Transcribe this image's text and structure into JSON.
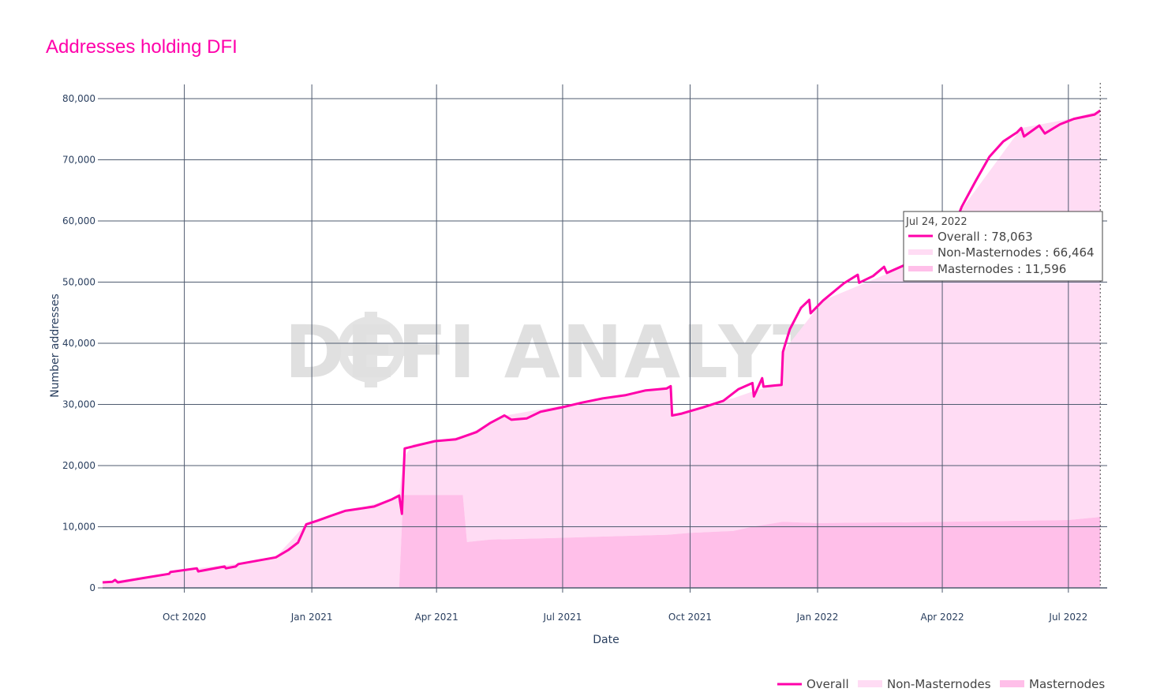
{
  "colors": {
    "overall_line": "#ff00aa",
    "non_masternodes_fill": "#ffdcf4",
    "masternodes_fill": "#ffbfe9",
    "grid": "#4f5b6f",
    "axis_text": "#2a3f5f"
  },
  "chart_data": {
    "type": "area",
    "title": "Addresses holding DFI",
    "xlabel": "Date",
    "ylabel": "Number addresses",
    "xlim": [
      "2020-08-03",
      "2022-07-29"
    ],
    "ylim": [
      0,
      80000
    ],
    "y_ticks": [
      0,
      10000,
      20000,
      30000,
      40000,
      50000,
      60000,
      70000,
      80000
    ],
    "y_tick_labels": [
      "0",
      "10,000",
      "20,000",
      "30,000",
      "40,000",
      "50,000",
      "60,000",
      "70,000",
      "80,000"
    ],
    "x_ticks": [
      "2020-10-01",
      "2021-01-01",
      "2021-04-01",
      "2021-07-01",
      "2021-10-01",
      "2022-01-01",
      "2022-04-01",
      "2022-07-01"
    ],
    "x_tick_labels": [
      "Oct 2020",
      "Jan 2021",
      "Apr 2021",
      "Jul 2021",
      "Oct 2021",
      "Jan 2022",
      "Apr 2022",
      "Jul 2022"
    ],
    "grid": true,
    "legend_position": "bottom-right",
    "hover_marker_date": "2022-07-24",
    "series": [
      {
        "name": "Overall",
        "style": "line",
        "points": [
          [
            "2020-08-03",
            900
          ],
          [
            "2020-08-10",
            1000
          ],
          [
            "2020-08-12",
            1300
          ],
          [
            "2020-08-14",
            900
          ],
          [
            "2020-09-01",
            1600
          ],
          [
            "2020-09-20",
            2300
          ],
          [
            "2020-09-21",
            2600
          ],
          [
            "2020-10-10",
            3200
          ],
          [
            "2020-10-11",
            2700
          ],
          [
            "2020-10-30",
            3500
          ],
          [
            "2020-10-31",
            3200
          ],
          [
            "2020-11-07",
            3500
          ],
          [
            "2020-11-09",
            3900
          ],
          [
            "2020-12-06",
            5000
          ],
          [
            "2020-12-15",
            6200
          ],
          [
            "2020-12-22",
            7400
          ],
          [
            "2020-12-28",
            10400
          ],
          [
            "2021-01-05",
            11000
          ],
          [
            "2021-01-15",
            11800
          ],
          [
            "2021-01-25",
            12600
          ],
          [
            "2021-02-15",
            13300
          ],
          [
            "2021-02-28",
            14500
          ],
          [
            "2021-03-05",
            15100
          ],
          [
            "2021-03-07",
            12100
          ],
          [
            "2021-03-09",
            22800
          ],
          [
            "2021-03-20",
            23400
          ],
          [
            "2021-03-31",
            24000
          ],
          [
            "2021-04-15",
            24300
          ],
          [
            "2021-04-30",
            25500
          ],
          [
            "2021-05-10",
            27000
          ],
          [
            "2021-05-20",
            28200
          ],
          [
            "2021-05-25",
            27500
          ],
          [
            "2021-06-05",
            27700
          ],
          [
            "2021-06-15",
            28800
          ],
          [
            "2021-06-30",
            29500
          ],
          [
            "2021-07-15",
            30300
          ],
          [
            "2021-07-30",
            31000
          ],
          [
            "2021-08-15",
            31500
          ],
          [
            "2021-08-30",
            32300
          ],
          [
            "2021-09-14",
            32600
          ],
          [
            "2021-09-17",
            33000
          ],
          [
            "2021-09-18",
            28200
          ],
          [
            "2021-09-25",
            28500
          ],
          [
            "2021-10-10",
            29500
          ],
          [
            "2021-10-25",
            30600
          ],
          [
            "2021-11-05",
            32500
          ],
          [
            "2021-11-15",
            33500
          ],
          [
            "2021-11-16",
            31300
          ],
          [
            "2021-11-22",
            34300
          ],
          [
            "2021-11-23",
            32900
          ],
          [
            "2021-12-01",
            33100
          ],
          [
            "2021-12-06",
            33200
          ],
          [
            "2021-12-07",
            38600
          ],
          [
            "2021-12-12",
            42300
          ],
          [
            "2021-12-20",
            45800
          ],
          [
            "2021-12-26",
            47100
          ],
          [
            "2021-12-27",
            44900
          ],
          [
            "2022-01-05",
            47000
          ],
          [
            "2022-01-20",
            49800
          ],
          [
            "2022-01-30",
            51200
          ],
          [
            "2022-01-31",
            49900
          ],
          [
            "2022-02-10",
            51000
          ],
          [
            "2022-02-18",
            52500
          ],
          [
            "2022-02-20",
            51500
          ],
          [
            "2022-03-05",
            52800
          ],
          [
            "2022-03-20",
            54000
          ],
          [
            "2022-04-05",
            56500
          ],
          [
            "2022-04-15",
            62300
          ],
          [
            "2022-04-25",
            66500
          ],
          [
            "2022-05-05",
            70500
          ],
          [
            "2022-05-15",
            73000
          ],
          [
            "2022-05-25",
            74500
          ],
          [
            "2022-05-28",
            75200
          ],
          [
            "2022-05-30",
            73800
          ],
          [
            "2022-06-10",
            75600
          ],
          [
            "2022-06-14",
            74300
          ],
          [
            "2022-06-25",
            75800
          ],
          [
            "2022-07-05",
            76700
          ],
          [
            "2022-07-20",
            77400
          ],
          [
            "2022-07-24",
            78063
          ]
        ]
      },
      {
        "name": "Non-Masternodes",
        "style": "stacked-area",
        "points": [
          [
            "2020-08-03",
            900
          ],
          [
            "2020-09-20",
            2300
          ],
          [
            "2020-10-10",
            3200
          ],
          [
            "2020-11-09",
            3900
          ],
          [
            "2020-12-06",
            5000
          ],
          [
            "2020-12-28",
            10400
          ],
          [
            "2021-02-28",
            14500
          ],
          [
            "2021-03-05",
            15000
          ],
          [
            "2021-03-08",
            6000
          ],
          [
            "2021-03-15",
            8300
          ],
          [
            "2021-04-10",
            9200
          ],
          [
            "2021-04-20",
            9600
          ],
          [
            "2021-04-23",
            17500
          ],
          [
            "2021-05-20",
            20200
          ],
          [
            "2021-07-15",
            22100
          ],
          [
            "2021-09-17",
            24300
          ],
          [
            "2021-09-18",
            19500
          ],
          [
            "2021-10-25",
            21500
          ],
          [
            "2021-12-06",
            22700
          ],
          [
            "2021-12-07",
            27800
          ],
          [
            "2022-01-05",
            36400
          ],
          [
            "2022-03-20",
            43200
          ],
          [
            "2022-05-28",
            64200
          ],
          [
            "2022-07-24",
            66464
          ]
        ]
      },
      {
        "name": "Masternodes",
        "style": "stacked-area",
        "points": [
          [
            "2020-08-03",
            0
          ],
          [
            "2021-03-05",
            100
          ],
          [
            "2021-03-08",
            15200
          ],
          [
            "2021-04-20",
            15200
          ],
          [
            "2021-04-23",
            7500
          ],
          [
            "2021-05-10",
            7900
          ],
          [
            "2021-07-01",
            8200
          ],
          [
            "2021-08-01",
            8400
          ],
          [
            "2021-09-15",
            8700
          ],
          [
            "2021-10-01",
            9000
          ],
          [
            "2021-11-01",
            9300
          ],
          [
            "2021-11-15",
            10000
          ],
          [
            "2021-12-07",
            10800
          ],
          [
            "2022-01-01",
            10600
          ],
          [
            "2022-04-01",
            10800
          ],
          [
            "2022-07-01",
            11100
          ],
          [
            "2022-07-24",
            11596
          ]
        ]
      }
    ]
  },
  "tooltip": {
    "date": "Jul 24, 2022",
    "rows": [
      {
        "label": "Overall : 78,063"
      },
      {
        "label": "Non-Masternodes : 66,464"
      },
      {
        "label": "Masternodes : 11,596"
      }
    ]
  },
  "legend": {
    "items": [
      {
        "label": "Overall"
      },
      {
        "label": "Non-Masternodes"
      },
      {
        "label": "Masternodes"
      }
    ]
  },
  "watermark": {
    "text": "DEFI ANALYTICS",
    "icon": "defichain-logo-icon"
  }
}
